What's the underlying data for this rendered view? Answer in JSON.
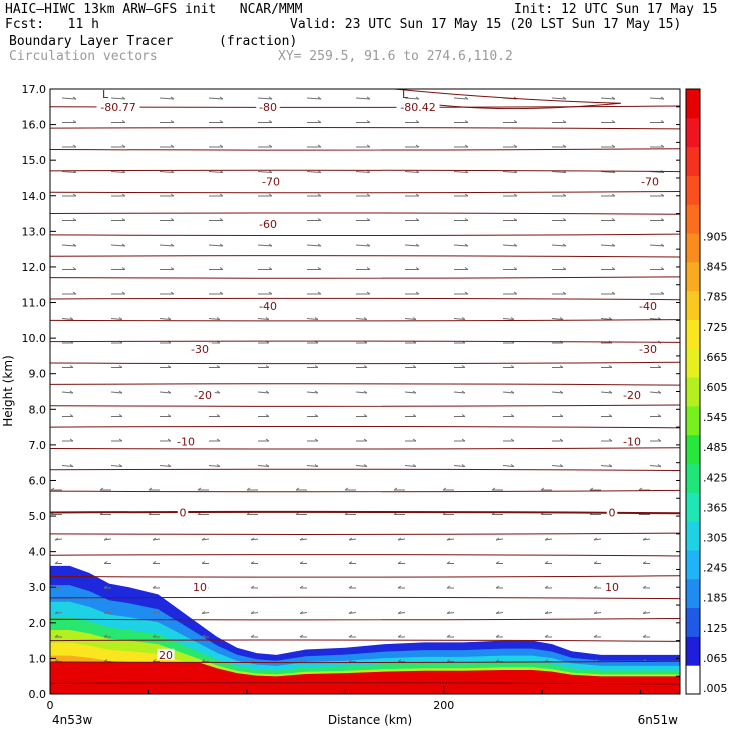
{
  "header": {
    "line1_left": "HAIC–HIWC 13km ARW–GFS init   NCAR/MMM",
    "line1_right": "Init: 12 UTC Sun 17 May 15",
    "line2_left": "Fcst:   11 h",
    "line2_right": "Valid: 23 UTC Sun 17 May 15 (20 LST Sun 17 May 15)",
    "field_name": "Boundary Layer Tracer",
    "field_units": "(fraction)",
    "vector_label": "Circulation vectors",
    "xy_label": "XY= 259.5, 91.6 to 274.6,110.2"
  },
  "colors": {
    "contour": "#7a1010",
    "vector": "#707070",
    "colorbar": [
      "#ffffff",
      "#1e1edc",
      "#1e5ae6",
      "#1e8cf0",
      "#1eb4f5",
      "#1ed2e6",
      "#1ee6b4",
      "#1ee678",
      "#28e63c",
      "#78f01e",
      "#b4f01e",
      "#e6f01e",
      "#fae61e",
      "#fac81e",
      "#faaa1e",
      "#fa8c1e",
      "#fa6e1e",
      "#fa501e",
      "#f5321e",
      "#f0141e",
      "#e60000"
    ]
  },
  "chart_data": {
    "type": "cross-section contour (filled tracer + temperature isotherms + circulation vectors)",
    "title": "Boundary Layer Tracer",
    "units": "(fraction)",
    "xlabel": "Distance (km)",
    "ylabel": "Height (km)",
    "x_start_label": "4n53w",
    "x_end_label": "6n51w",
    "xlim": [
      0,
      320
    ],
    "x_ticks": [
      0,
      200
    ],
    "ylim": [
      0,
      17
    ],
    "y_ticks": [
      "0.0",
      "1.0",
      "2.0",
      "3.0",
      "4.0",
      "5.0",
      "6.0",
      "7.0",
      "8.0",
      "9.0",
      "10.0",
      "11.0",
      "12.0",
      "13.0",
      "14.0",
      "15.0",
      "16.0",
      "17.0"
    ],
    "colorbar_labels": [
      ".005",
      ".065",
      ".125",
      ".185",
      ".245",
      ".305",
      ".365",
      ".425",
      ".485",
      ".545",
      ".605",
      ".665",
      ".725",
      ".785",
      ".845",
      ".905"
    ],
    "tracer_top_km": [
      [
        0,
        3.6
      ],
      [
        10,
        3.6
      ],
      [
        20,
        3.4
      ],
      [
        30,
        3.1
      ],
      [
        40,
        3.0
      ],
      [
        55,
        2.8
      ],
      [
        65,
        2.4
      ],
      [
        75,
        2.0
      ],
      [
        85,
        1.6
      ],
      [
        95,
        1.3
      ],
      [
        105,
        1.15
      ],
      [
        115,
        1.1
      ],
      [
        130,
        1.25
      ],
      [
        150,
        1.3
      ],
      [
        170,
        1.4
      ],
      [
        190,
        1.45
      ],
      [
        210,
        1.45
      ],
      [
        230,
        1.5
      ],
      [
        245,
        1.5
      ],
      [
        255,
        1.4
      ],
      [
        265,
        1.2
      ],
      [
        280,
        1.1
      ],
      [
        300,
        1.1
      ],
      [
        320,
        1.1
      ]
    ],
    "isotherms": [
      {
        "label": "-80.77",
        "y": 16.5
      },
      {
        "label": "-80",
        "y": 16.5
      },
      {
        "label": "-80.42",
        "y": 16.5
      },
      {
        "label": "-70",
        "y": 14.4
      },
      {
        "label": "-60",
        "y": 13.2
      },
      {
        "label": "-40",
        "y": 10.9
      },
      {
        "label": "-30",
        "y": 9.7
      },
      {
        "label": "-20",
        "y": 8.4
      },
      {
        "label": "-10",
        "y": 7.1
      },
      {
        "label": "0",
        "y": 5.1
      },
      {
        "label": "10",
        "y": 3.0
      },
      {
        "label": "20",
        "y": 1.1
      }
    ],
    "extrema_labels": [
      "L",
      "L"
    ]
  }
}
